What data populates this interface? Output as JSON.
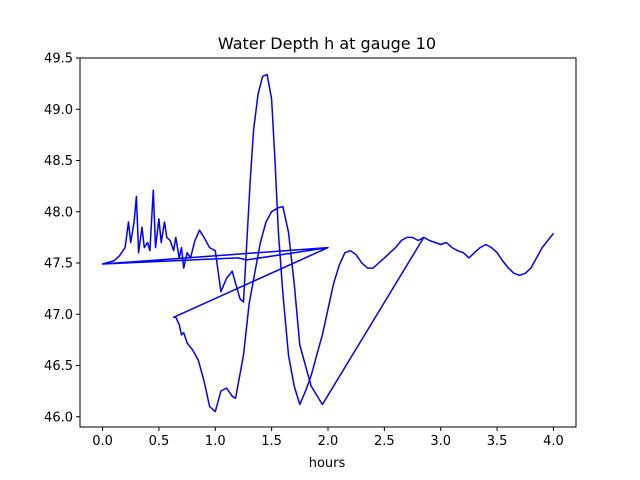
{
  "chart_data": {
    "type": "line",
    "title": "Water Depth h at gauge 10",
    "xlabel": "hours",
    "ylabel": "",
    "xlim": [
      -0.2,
      4.2
    ],
    "ylim": [
      45.9,
      49.5
    ],
    "xticks": [
      0.0,
      0.5,
      1.0,
      1.5,
      2.0,
      2.5,
      3.0,
      3.5,
      4.0
    ],
    "xtick_labels": [
      "0.0",
      "0.5",
      "1.0",
      "1.5",
      "2.0",
      "2.5",
      "3.0",
      "3.5",
      "4.0"
    ],
    "yticks": [
      46.0,
      46.5,
      47.0,
      47.5,
      48.0,
      48.5,
      49.0,
      49.5
    ],
    "ytick_labels": [
      "46.0",
      "46.5",
      "47.0",
      "47.5",
      "48.0",
      "48.5",
      "49.0",
      "49.5"
    ],
    "grid": false,
    "line_color": "#0000ff",
    "series": [
      {
        "x": [
          0.0,
          0.1,
          0.15,
          0.2,
          0.23,
          0.25,
          0.28,
          0.3,
          0.32,
          0.35,
          0.37,
          0.4,
          0.42,
          0.45,
          0.47,
          0.5,
          0.52,
          0.55,
          0.57,
          0.6,
          0.63,
          0.65,
          0.68,
          0.7,
          0.72,
          0.75,
          0.78,
          0.82,
          0.86,
          0.9,
          0.95,
          1.0,
          1.05,
          1.1,
          1.15,
          1.18,
          1.22,
          1.25,
          1.28,
          1.31,
          1.34,
          1.38,
          1.42,
          1.46,
          1.5,
          1.53,
          1.56,
          1.6,
          1.65,
          1.7,
          1.75,
          1.8,
          1.85,
          1.9,
          1.95,
          2.0,
          2.05,
          2.1,
          2.15,
          2.2,
          2.25,
          2.3,
          2.35,
          2.4,
          2.45,
          2.5,
          2.55,
          2.6,
          2.65,
          2.7,
          2.75,
          2.8,
          2.85,
          2.9,
          2.95,
          3.0,
          3.05,
          3.1,
          3.15,
          3.2,
          3.25,
          3.3,
          3.35,
          3.4,
          3.45,
          3.5,
          3.55,
          3.6,
          3.65,
          3.7,
          3.75,
          3.8,
          3.85,
          3.9,
          3.95,
          4.0
        ],
        "y": [
          47.49,
          47.52,
          47.57,
          47.65,
          47.9,
          47.7,
          47.9,
          48.15,
          47.6,
          47.85,
          47.65,
          47.7,
          47.62,
          48.21,
          47.65,
          47.93,
          47.7,
          47.9,
          47.75,
          47.72,
          47.62,
          47.75,
          47.55,
          47.65,
          47.45,
          47.6,
          47.55,
          47.72,
          47.82,
          47.75,
          47.65,
          47.62,
          47.22,
          47.35,
          47.42,
          47.3,
          47.15,
          47.12,
          47.7,
          48.3,
          48.8,
          49.15,
          49.32,
          49.34,
          49.1,
          48.5,
          47.8,
          47.2,
          46.6,
          46.3,
          46.12,
          46.25,
          46.4,
          46.6,
          46.8,
          47.05,
          47.3,
          47.48,
          47.6,
          47.62,
          47.58,
          47.5,
          47.45,
          47.45,
          47.5,
          47.55,
          47.6,
          47.65,
          47.72,
          47.75,
          47.75,
          47.72,
          47.75,
          47.72,
          47.7,
          47.68,
          47.7,
          47.65,
          47.62,
          47.6,
          47.55,
          47.6,
          47.65,
          47.68,
          47.65,
          47.6,
          47.52,
          47.45,
          47.4,
          47.38,
          47.4,
          47.45,
          47.55,
          47.65,
          47.72,
          47.79
        ]
      },
      {
        "x": [
          2.85,
          1.95,
          1.85,
          1.75,
          1.7,
          1.65,
          1.6,
          1.56,
          1.5,
          1.45,
          1.4,
          1.35,
          1.3,
          1.25,
          1.2,
          1.18,
          1.15,
          1.1,
          1.05,
          1.0,
          0.95,
          0.9,
          0.85,
          0.8,
          0.75,
          0.72,
          0.7,
          0.68,
          0.65,
          0.63,
          2.0,
          1.28,
          1.2,
          0.0,
          2.0
        ],
        "y": [
          47.75,
          46.12,
          46.3,
          46.7,
          47.3,
          47.8,
          48.05,
          48.04,
          48.0,
          47.9,
          47.7,
          47.4,
          47.1,
          46.6,
          46.3,
          46.18,
          46.2,
          46.28,
          46.25,
          46.05,
          46.1,
          46.35,
          46.55,
          46.65,
          46.72,
          46.82,
          46.8,
          46.9,
          46.97,
          46.97,
          47.65,
          47.53,
          47.55,
          47.49,
          47.65
        ]
      }
    ]
  }
}
